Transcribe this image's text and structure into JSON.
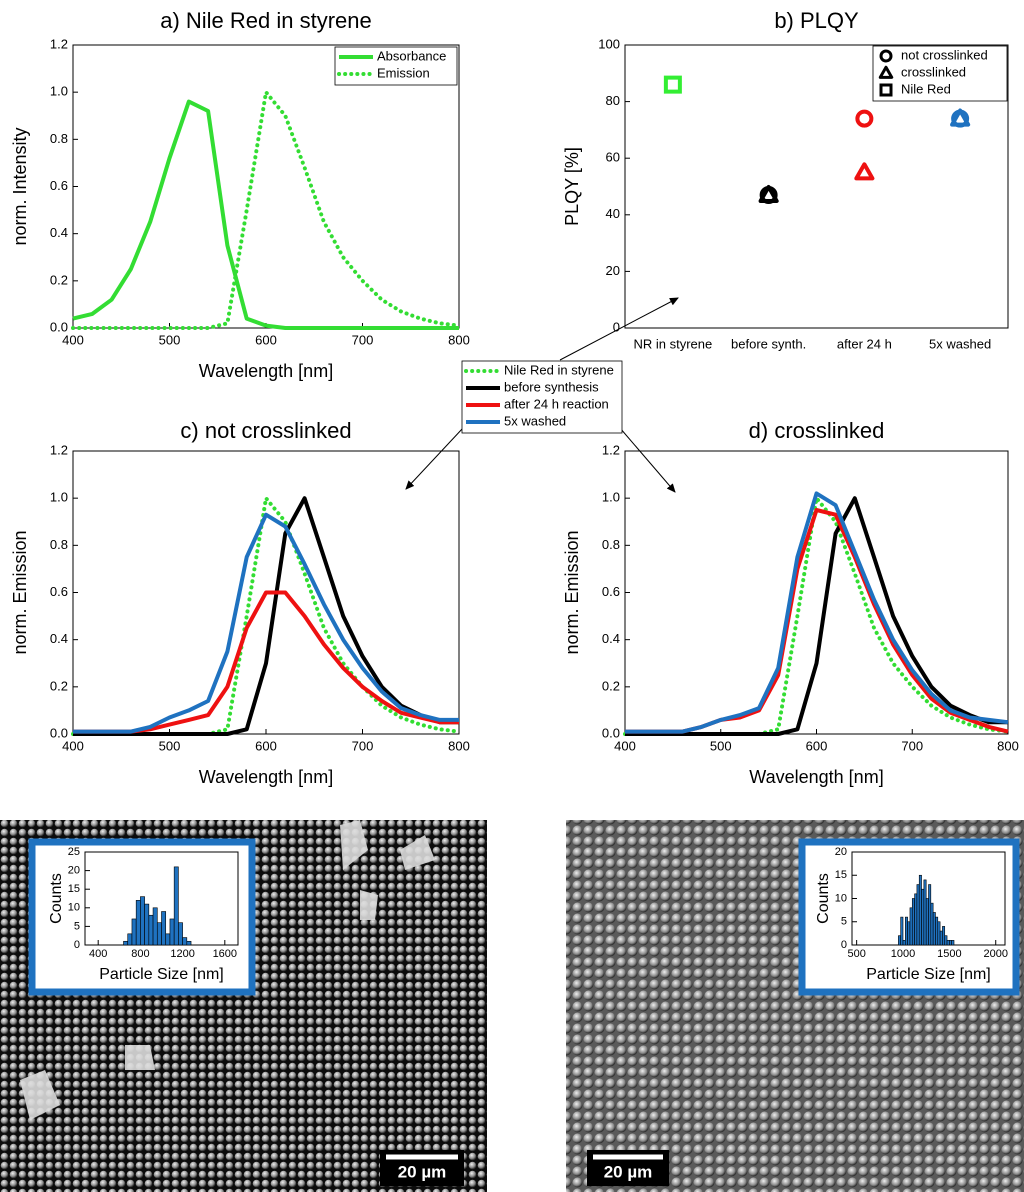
{
  "chart_data": [
    {
      "type": "line",
      "title": "a) Nile Red in styrene",
      "xlabel": "Wavelength [nm]",
      "ylabel": "norm. Intensity",
      "x": [
        400,
        420,
        440,
        460,
        480,
        500,
        520,
        540,
        560,
        580,
        600,
        620,
        640,
        660,
        680,
        700,
        720,
        740,
        760,
        780,
        800
      ],
      "series": [
        {
          "name": "Absorbance",
          "color": "#33dd33",
          "linestyle": "solid",
          "values": [
            0.04,
            0.06,
            0.12,
            0.25,
            0.45,
            0.72,
            0.96,
            0.92,
            0.35,
            0.04,
            0.01,
            0,
            0,
            0,
            0,
            0,
            0,
            0,
            0,
            0,
            0
          ]
        },
        {
          "name": "Emission",
          "color": "#33dd33",
          "linestyle": "dotted",
          "values": [
            0,
            0,
            0,
            0,
            0,
            0,
            0,
            0,
            0.02,
            0.5,
            1.0,
            0.9,
            0.68,
            0.45,
            0.3,
            0.2,
            0.12,
            0.07,
            0.04,
            0.02,
            0.01
          ]
        }
      ],
      "xlim": [
        400,
        800
      ],
      "xticks": [
        400,
        500,
        600,
        700,
        800
      ],
      "ylim": [
        0,
        1.2
      ],
      "yticks": [
        {
          "value": 0,
          "label": "0.0"
        },
        0.2,
        0.4,
        0.6,
        0.8,
        {
          "value": 1,
          "label": "1.0"
        },
        1.2
      ],
      "legend": "upper right"
    },
    {
      "type": "scatter",
      "title": "b) PLQY",
      "ylabel": "PLQY [%]",
      "categories": [
        "NR in styrene",
        "before synth.",
        "after 24 h",
        "5x washed"
      ],
      "point_colors": [
        "#33ee33",
        "#000000",
        "#ee1111",
        "#1f72c0"
      ],
      "series": [
        {
          "name": "not crosslinked",
          "marker": "circle",
          "values": [
            null,
            47,
            74,
            74
          ]
        },
        {
          "name": "crosslinked",
          "marker": "triangle",
          "values": [
            null,
            47,
            55,
            74
          ]
        },
        {
          "name": "Nile Red",
          "marker": "square",
          "values": [
            86,
            null,
            null,
            null
          ]
        }
      ],
      "ylim": [
        0,
        100
      ],
      "yticks": [
        0,
        20,
        40,
        60,
        80,
        100
      ],
      "legend": "upper right"
    },
    {
      "type": "line",
      "title": "c) not crosslinked",
      "xlabel": "Wavelength [nm]",
      "ylabel": "norm. Emission",
      "x": [
        400,
        420,
        440,
        460,
        480,
        500,
        520,
        540,
        560,
        580,
        600,
        620,
        640,
        660,
        680,
        700,
        720,
        740,
        760,
        780,
        800
      ],
      "series": [
        {
          "name": "Nile Red in styrene",
          "color": "#33dd33",
          "linestyle": "dotted",
          "values": [
            0,
            0,
            0,
            0,
            0,
            0,
            0,
            0,
            0.02,
            0.5,
            1.0,
            0.9,
            0.68,
            0.45,
            0.3,
            0.2,
            0.12,
            0.07,
            0.04,
            0.02,
            0.01
          ]
        },
        {
          "name": "before synthesis",
          "color": "#000000",
          "linestyle": "solid",
          "values": [
            0,
            0,
            0,
            0,
            0,
            0,
            0,
            0,
            0,
            0.02,
            0.3,
            0.85,
            1.0,
            0.75,
            0.5,
            0.33,
            0.2,
            0.12,
            0.08,
            0.05,
            0.05
          ]
        },
        {
          "name": "after 24 h reaction",
          "color": "#ee1111",
          "linestyle": "solid",
          "values": [
            0.01,
            0.01,
            0.01,
            0.01,
            0.02,
            0.04,
            0.06,
            0.08,
            0.2,
            0.45,
            0.6,
            0.6,
            0.5,
            0.38,
            0.28,
            0.2,
            0.14,
            0.09,
            0.07,
            0.05,
            0.05
          ]
        },
        {
          "name": "5x washed",
          "color": "#1f72c0",
          "linestyle": "solid",
          "values": [
            0.01,
            0.01,
            0.01,
            0.01,
            0.03,
            0.07,
            0.1,
            0.14,
            0.35,
            0.75,
            0.93,
            0.88,
            0.72,
            0.55,
            0.4,
            0.28,
            0.18,
            0.11,
            0.08,
            0.06,
            0.06
          ]
        }
      ],
      "xlim": [
        400,
        800
      ],
      "xticks": [
        400,
        500,
        600,
        700,
        800
      ],
      "ylim": [
        0,
        1.2
      ],
      "yticks": [
        {
          "value": 0,
          "label": "0.0"
        },
        0.2,
        0.4,
        0.6,
        0.8,
        {
          "value": 1,
          "label": "1.0"
        },
        1.2
      ],
      "legend": "center"
    },
    {
      "type": "line",
      "title": "d) crosslinked",
      "xlabel": "Wavelength [nm]",
      "ylabel": "norm. Emission",
      "x": [
        400,
        420,
        440,
        460,
        480,
        500,
        520,
        540,
        560,
        580,
        600,
        620,
        640,
        660,
        680,
        700,
        720,
        740,
        760,
        780,
        800
      ],
      "series": [
        {
          "color": "#33dd33",
          "linestyle": "dotted",
          "values": [
            0,
            0,
            0,
            0,
            0,
            0,
            0,
            0,
            0.02,
            0.5,
            1.0,
            0.9,
            0.68,
            0.45,
            0.3,
            0.2,
            0.12,
            0.07,
            0.04,
            0.02,
            0.01
          ]
        },
        {
          "color": "#000000",
          "linestyle": "solid",
          "values": [
            0,
            0,
            0,
            0,
            0,
            0,
            0,
            0,
            0,
            0.02,
            0.3,
            0.85,
            1.0,
            0.75,
            0.5,
            0.33,
            0.2,
            0.12,
            0.08,
            0.05,
            0.05
          ]
        },
        {
          "color": "#ee1111",
          "linestyle": "solid",
          "values": [
            0.01,
            0.01,
            0.01,
            0.01,
            0.03,
            0.06,
            0.07,
            0.1,
            0.25,
            0.7,
            0.95,
            0.93,
            0.75,
            0.55,
            0.38,
            0.25,
            0.15,
            0.09,
            0.06,
            0.03,
            0.01
          ]
        },
        {
          "color": "#1f72c0",
          "linestyle": "solid",
          "values": [
            0.01,
            0.01,
            0.01,
            0.01,
            0.03,
            0.06,
            0.08,
            0.11,
            0.28,
            0.75,
            1.02,
            0.97,
            0.77,
            0.57,
            0.4,
            0.27,
            0.17,
            0.1,
            0.07,
            0.06,
            0.05
          ]
        }
      ],
      "xlim": [
        400,
        800
      ],
      "xticks": [
        400,
        500,
        600,
        700,
        800
      ],
      "ylim": [
        0,
        1.2
      ],
      "yticks": [
        {
          "value": 0,
          "label": "0.0"
        },
        0.2,
        0.4,
        0.6,
        0.8,
        {
          "value": 1,
          "label": "1.0"
        },
        1.2
      ]
    },
    {
      "type": "histogram",
      "xlabel": "Particle Size [nm]",
      "ylabel": "Counts",
      "color": "#1f72c0",
      "bins": [
        640,
        680,
        720,
        760,
        800,
        840,
        880,
        920,
        960,
        1000,
        1040,
        1080,
        1120,
        1160,
        1200,
        1240,
        1280
      ],
      "counts": [
        1,
        3,
        7,
        12,
        13,
        11,
        8,
        10,
        6,
        9,
        3,
        7,
        21,
        6,
        2,
        1
      ],
      "xlim": [
        275,
        1725
      ],
      "xticks": [
        400,
        800,
        1200,
        1600
      ],
      "ylim": [
        0,
        25
      ],
      "yticks": [
        0,
        5,
        10,
        15,
        20,
        25
      ]
    },
    {
      "type": "histogram",
      "xlabel": "Particle Size [nm]",
      "ylabel": "Counts",
      "color": "#1f72c0",
      "bins": [
        950,
        975,
        1000,
        1025,
        1050,
        1075,
        1100,
        1125,
        1150,
        1175,
        1200,
        1225,
        1250,
        1275,
        1300,
        1325,
        1350,
        1375,
        1400,
        1425,
        1450,
        1475,
        1500,
        1525,
        1550
      ],
      "counts": [
        2,
        6,
        1,
        6,
        5,
        8,
        10,
        11,
        13,
        15,
        12,
        14,
        10,
        13,
        9,
        7,
        6,
        5,
        3,
        4,
        2,
        1,
        1,
        1
      ],
      "xlim": [
        450,
        2100
      ],
      "xticks": [
        500,
        1000,
        1500,
        2000
      ],
      "ylim": [
        0,
        20
      ],
      "yticks": [
        0,
        5,
        10,
        15,
        20
      ]
    }
  ],
  "images": [
    {
      "scale_bar": "20 µm"
    },
    {
      "scale_bar": "20 µm"
    }
  ]
}
